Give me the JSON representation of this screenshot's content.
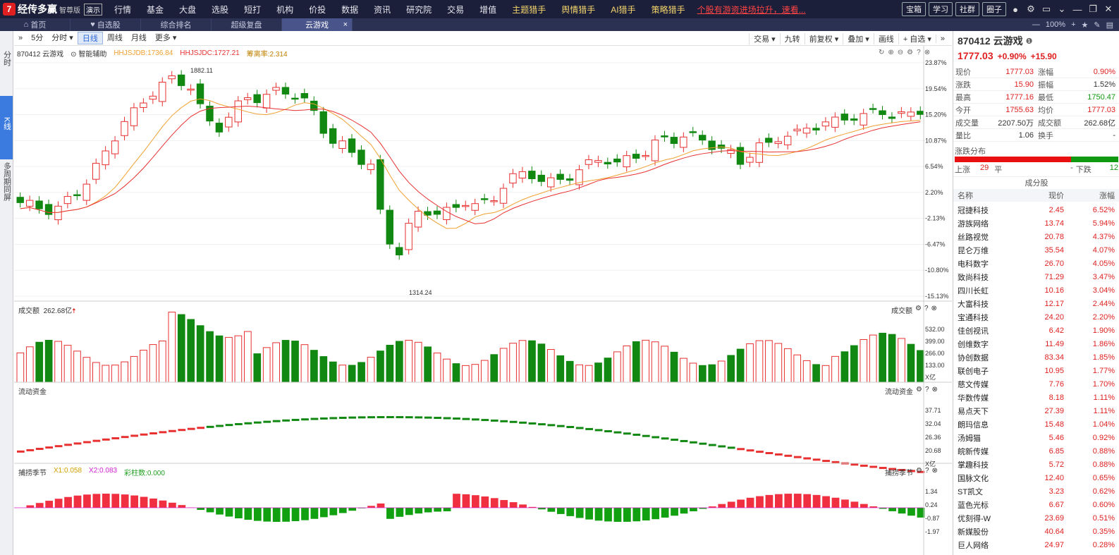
{
  "app": {
    "logo_badge": "7",
    "name": "经传多赢",
    "edition": "智尊版",
    "demo": "演示"
  },
  "menu": [
    {
      "label": "行情",
      "hl": false
    },
    {
      "label": "基金",
      "hl": false
    },
    {
      "label": "大盘",
      "hl": false
    },
    {
      "label": "选股",
      "hl": false
    },
    {
      "label": "短打",
      "hl": false
    },
    {
      "label": "机构",
      "hl": false
    },
    {
      "label": "价投",
      "hl": false
    },
    {
      "label": "数据",
      "hl": false
    },
    {
      "label": "资讯",
      "hl": false
    },
    {
      "label": "研究院",
      "hl": false
    },
    {
      "label": "交易",
      "hl": false
    },
    {
      "label": "增值",
      "hl": false
    },
    {
      "label": "主题猎手",
      "hl": true
    },
    {
      "label": "舆情猎手",
      "hl": true
    },
    {
      "label": "AI猎手",
      "hl": true
    },
    {
      "label": "策略猎手",
      "hl": true
    }
  ],
  "ticker": "个股有游资进场拉升，速看...",
  "top_buttons": [
    "宝箱",
    "学习",
    "社群",
    "圈子"
  ],
  "tabs": [
    {
      "label": "首页",
      "icon": "home-icon"
    },
    {
      "label": "自选股",
      "icon": "heart-icon"
    },
    {
      "label": "综合排名",
      "icon": ""
    },
    {
      "label": "超级复盘",
      "icon": ""
    },
    {
      "label": "云游戏",
      "icon": "",
      "active": true
    }
  ],
  "zoom": "100%",
  "left_tabs": [
    "分时",
    "K线",
    "多周期同屏"
  ],
  "chart_toolbar": {
    "periods": [
      "5分",
      "分时 ▾",
      "日线",
      "周线",
      "月线",
      "更多 ▾"
    ],
    "selected": "日线",
    "right": [
      "交易 ▾",
      "九转",
      "前复权 ▾",
      "叠加 ▾",
      "画线",
      "+ 自选 ▾"
    ]
  },
  "main_legend": {
    "stock": "870412 云游戏",
    "assist": "智能辅助",
    "ma1": "HHJSJDB:1736.84",
    "ma2": "HHJSJDC:1727.21",
    "ratio": "筹离率:2.314"
  },
  "price_axis": [
    "23.87%",
    "19.54%",
    "15.20%",
    "10.87%",
    "6.54%",
    "2.20%",
    "-2.13%",
    "-6.47%",
    "-10.80%",
    "-15.13%"
  ],
  "high_label": "1882.11",
  "low_label": "1314.24",
  "volume_panel": {
    "title": "成交额",
    "value": "262.68亿",
    "right_title": "成交额",
    "axis": [
      "532.00",
      "399.00",
      "266.00",
      "133.00",
      "X亿"
    ]
  },
  "flow_panel": {
    "title": "流动资金",
    "right_title": "流动资金",
    "axis": [
      "37.71",
      "32.04",
      "26.36",
      "20.68",
      "X亿"
    ]
  },
  "season_panel": {
    "title": "捕捞季节",
    "x1": "X1:0.058",
    "x2": "X2:0.083",
    "bar": "彩柱数:0.000",
    "right_title": "捕捞季节",
    "axis": [
      "1.34",
      "0.24",
      "-0.87",
      "-1.97"
    ]
  },
  "quote": {
    "title": "870412 云游戏",
    "price": "1777.03",
    "change_pct": "+0.90%",
    "change": "+15.90",
    "rows": [
      [
        "现价",
        "1777.03",
        "red",
        "涨幅",
        "0.90%",
        "red"
      ],
      [
        "涨跌",
        "15.90",
        "red",
        "振幅",
        "1.52%",
        ""
      ],
      [
        "最高",
        "1777.16",
        "red",
        "最低",
        "1750.47",
        "green"
      ],
      [
        "今开",
        "1755.63",
        "red",
        "均价",
        "1777.03",
        "red"
      ],
      [
        "成交量",
        "2207.50万",
        "",
        "成交额",
        "262.68亿",
        ""
      ],
      [
        "量比",
        "1.06",
        "",
        "换手",
        "-",
        ""
      ]
    ]
  },
  "dist": {
    "title": "涨跌分布",
    "up_label": "上涨",
    "up": "29",
    "flat_label": "平",
    "flat": "-",
    "down_label": "下跌",
    "down": "12",
    "up_ratio": 0.71
  },
  "constituents": {
    "title": "成分股",
    "headers": [
      "名称",
      "现价",
      "涨幅"
    ],
    "rows": [
      [
        "冠捷科技",
        "2.45",
        "6.52%"
      ],
      [
        "游族网络",
        "13.74",
        "5.94%"
      ],
      [
        "丝路视觉",
        "20.78",
        "4.37%"
      ],
      [
        "昆仑万维",
        "35.54",
        "4.07%"
      ],
      [
        "电科数字",
        "26.70",
        "4.05%"
      ],
      [
        "致尚科技",
        "71.29",
        "3.47%"
      ],
      [
        "四川长虹",
        "10.16",
        "3.04%"
      ],
      [
        "大富科技",
        "12.17",
        "2.44%"
      ],
      [
        "宝通科技",
        "24.20",
        "2.20%"
      ],
      [
        "佳创视讯",
        "6.42",
        "1.90%"
      ],
      [
        "创维数字",
        "11.49",
        "1.86%"
      ],
      [
        "协创数据",
        "83.34",
        "1.85%"
      ],
      [
        "联创电子",
        "10.95",
        "1.77%"
      ],
      [
        "慈文传媒",
        "7.76",
        "1.70%"
      ],
      [
        "华数传媒",
        "8.18",
        "1.11%"
      ],
      [
        "易点天下",
        "27.39",
        "1.11%"
      ],
      [
        "朗玛信息",
        "15.48",
        "1.04%"
      ],
      [
        "汤姆猫",
        "5.46",
        "0.92%"
      ],
      [
        "皖新传媒",
        "6.85",
        "0.88%"
      ],
      [
        "掌趣科技",
        "5.72",
        "0.88%"
      ],
      [
        "国脉文化",
        "12.40",
        "0.65%"
      ],
      [
        "ST凯文",
        "3.23",
        "0.62%"
      ],
      [
        "蓝色光标",
        "6.67",
        "0.60%"
      ],
      [
        "优刻得-W",
        "23.69",
        "0.51%"
      ],
      [
        "新媒股份",
        "40.64",
        "0.35%"
      ],
      [
        "巨人网络",
        "24.97",
        "0.28%"
      ]
    ]
  }
}
